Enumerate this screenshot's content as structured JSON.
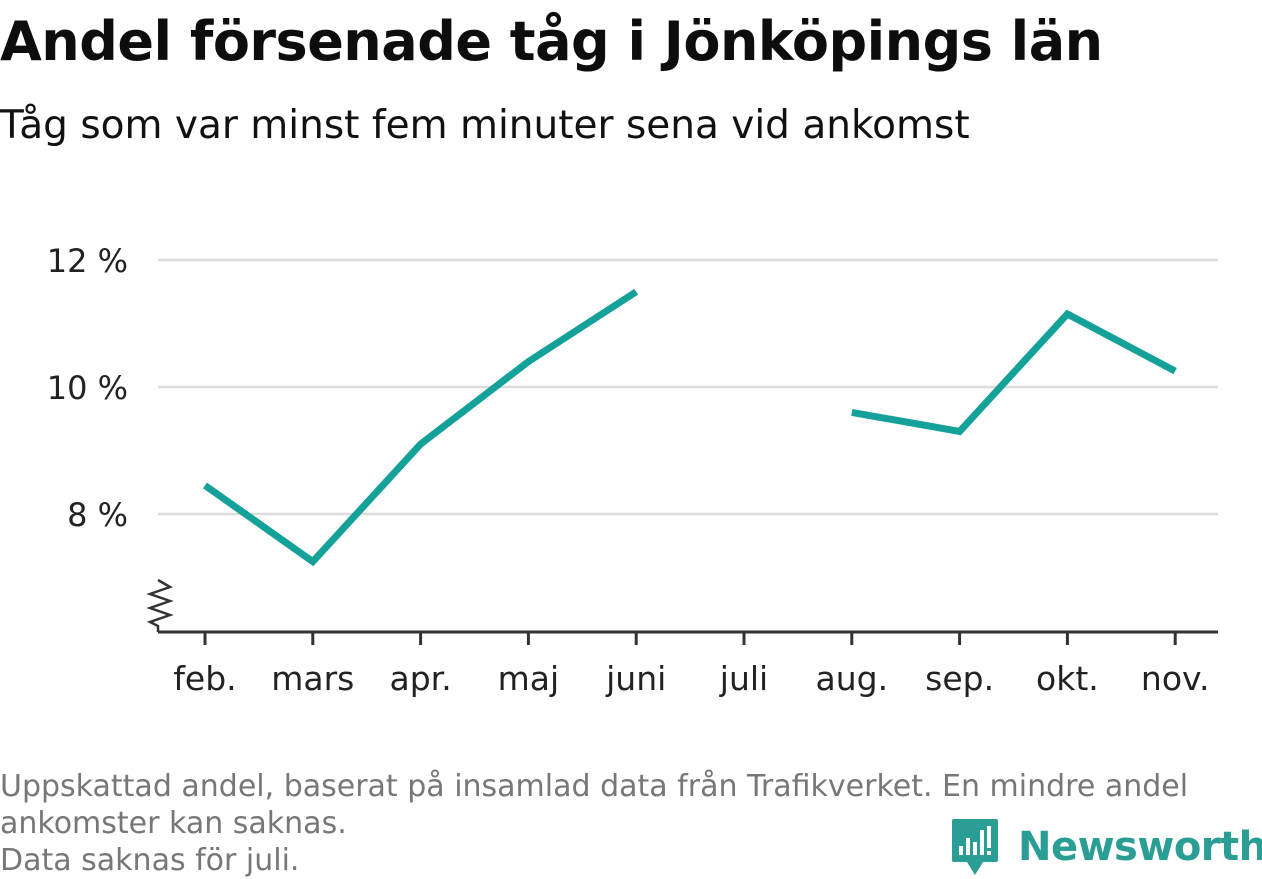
{
  "header": {
    "title": "Andel försenade tåg i Jönköpings län",
    "subtitle": "Tåg som var minst fem minuter sena vid ankomst"
  },
  "chart_data": {
    "type": "line",
    "categories": [
      "feb.",
      "mars",
      "apr.",
      "maj",
      "juni",
      "juli",
      "aug.",
      "sep.",
      "okt.",
      "nov."
    ],
    "series": [
      {
        "values": [
          8.45,
          7.25,
          9.1,
          10.4,
          11.5,
          null,
          9.6,
          9.3,
          11.15,
          10.25
        ],
        "color": "#14a199"
      }
    ],
    "y_ticks": [
      8,
      10,
      12
    ],
    "y_tick_labels": [
      "8 %",
      "10 %",
      "12 %"
    ],
    "ylim": [
      6.2,
      12.3
    ],
    "y_axis_break": true,
    "grid": "horizontal",
    "xlabel": "",
    "ylabel": ""
  },
  "footer": {
    "line1": "Uppskattad andel, baserat på insamlad data från Trafikverket. En mindre andel",
    "line2": "ankomster kan saknas.",
    "line3": "Data saknas för juli."
  },
  "brand": {
    "name": "Newsworthy",
    "color": "#2a9d95",
    "icon": "newsworthy-logo-icon"
  }
}
